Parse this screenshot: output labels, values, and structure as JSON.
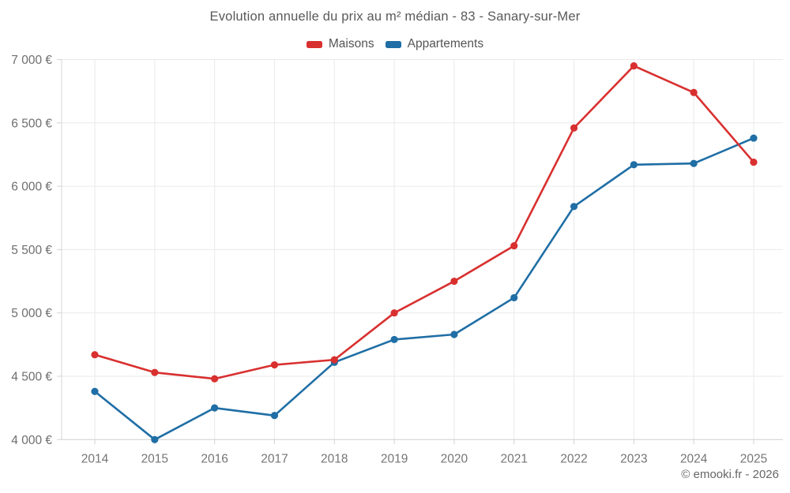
{
  "chart_data": {
    "type": "line",
    "title": "Evolution annuelle du prix au m² médian - 83 - Sanary-sur-Mer",
    "x": [
      2014,
      2015,
      2016,
      2017,
      2018,
      2019,
      2020,
      2021,
      2022,
      2023,
      2024,
      2025
    ],
    "series": [
      {
        "name": "Maisons",
        "color": "#d8302f",
        "values": [
          4670,
          4530,
          4480,
          4590,
          4630,
          5000,
          5250,
          5530,
          6460,
          6950,
          6740,
          6190
        ]
      },
      {
        "name": "Appartements",
        "color": "#1f6ea5",
        "values": [
          4380,
          4000,
          4250,
          4190,
          4610,
          4790,
          4830,
          5120,
          5840,
          6170,
          6180,
          6380
        ]
      }
    ],
    "ylim": [
      4000,
      7000
    ],
    "ytick_step": 500,
    "ytick_suffix": " €",
    "grid": true,
    "legend_position": "top",
    "xlabel": "",
    "ylabel": ""
  },
  "footer": {
    "credit": "© emooki.fr - 2026"
  }
}
